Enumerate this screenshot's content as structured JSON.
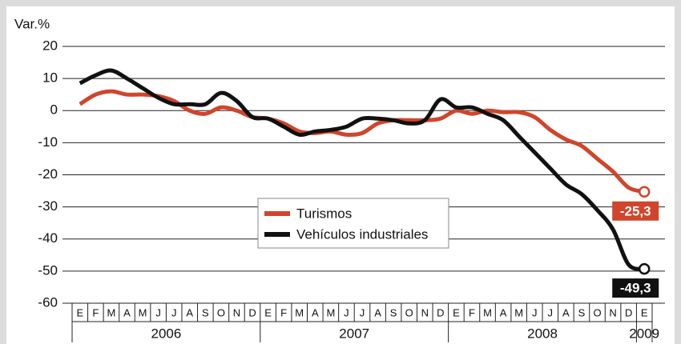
{
  "chart_data": {
    "type": "line",
    "y_axis_label": "Var.%",
    "categories": [
      "E",
      "F",
      "M",
      "A",
      "M",
      "J",
      "J",
      "A",
      "S",
      "O",
      "N",
      "D",
      "E",
      "F",
      "M",
      "A",
      "M",
      "J",
      "J",
      "A",
      "S",
      "O",
      "N",
      "D",
      "E",
      "F",
      "M",
      "A",
      "M",
      "J",
      "J",
      "A",
      "S",
      "O",
      "N",
      "D",
      "E"
    ],
    "years": [
      "2006",
      "2007",
      "2008",
      "2009"
    ],
    "ylim": [
      -60,
      20
    ],
    "yticks": [
      20,
      10,
      0,
      -10,
      -20,
      -30,
      -40,
      -50,
      -60
    ],
    "grid": true,
    "legend": "center",
    "series": [
      {
        "name": "Turismos",
        "color": "#d0452b",
        "values": [
          2,
          5,
          6,
          5,
          5,
          4.5,
          3,
          0,
          -1,
          1,
          0,
          -2,
          -2.5,
          -4,
          -6.5,
          -7,
          -6.5,
          -7.5,
          -7,
          -4,
          -3,
          -3,
          -3,
          -2.5,
          0,
          -1,
          0,
          -0.5,
          -0.5,
          -2,
          -6,
          -9,
          -11,
          -15,
          -19,
          -24,
          -25.3
        ],
        "value_labels": [
          null,
          null,
          null,
          null,
          null,
          null,
          null,
          null,
          null,
          null,
          null,
          null,
          null,
          null,
          null,
          null,
          null,
          null,
          null,
          null,
          null,
          null,
          null,
          null,
          null,
          null,
          null,
          null,
          null,
          null,
          null,
          null,
          null,
          null,
          null,
          null,
          "-25,3"
        ]
      },
      {
        "name": "Vehículos industriales",
        "color": "#111111",
        "values": [
          8.5,
          11,
          12.5,
          10,
          7,
          4,
          2,
          2,
          2,
          5.5,
          3,
          -2,
          -2.5,
          -5,
          -7.5,
          -6.5,
          -6,
          -5,
          -2.5,
          -2.5,
          -3,
          -4,
          -3,
          3.5,
          1,
          1,
          -1,
          -3,
          -8,
          -13,
          -18,
          -23,
          -26,
          -31,
          -37,
          -48,
          -49.3
        ],
        "value_labels": [
          null,
          null,
          null,
          null,
          null,
          null,
          null,
          null,
          null,
          null,
          null,
          null,
          null,
          null,
          null,
          null,
          null,
          null,
          null,
          null,
          null,
          null,
          null,
          null,
          null,
          null,
          null,
          null,
          null,
          null,
          null,
          null,
          null,
          null,
          null,
          null,
          "-49,3"
        ]
      }
    ]
  }
}
